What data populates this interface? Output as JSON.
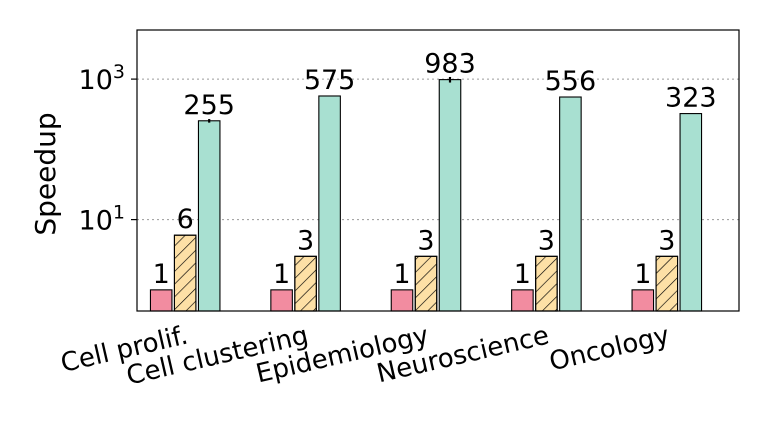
{
  "chart_data": {
    "type": "bar",
    "ylabel": "Speedup",
    "yscale": "log",
    "ylim": [
      0.5,
      5000
    ],
    "grid": "y-major-dotted",
    "yticks": [
      {
        "value": 10,
        "base": "10",
        "exp": "1"
      },
      {
        "value": 1000,
        "base": "10",
        "exp": "3"
      }
    ],
    "categories": [
      "Cell prolif.",
      "Cell clustering",
      "Epidemiology",
      "Neuroscience",
      "Oncology"
    ],
    "series": [
      {
        "color": "#f28ca0",
        "hatch": "",
        "values": [
          1,
          1,
          1,
          1,
          1
        ],
        "labels": [
          "1",
          "1",
          "1",
          "1",
          "1"
        ]
      },
      {
        "color": "#fde0a6",
        "hatch": "diagonal",
        "values": [
          6,
          3,
          3,
          3,
          3
        ],
        "labels": [
          "6",
          "3",
          "3",
          "3",
          "3"
        ]
      },
      {
        "color": "#a8e0d1",
        "hatch": "",
        "values": [
          255,
          575,
          983,
          556,
          323
        ],
        "labels": [
          "255",
          "575",
          "983",
          "556",
          "323"
        ],
        "error": [
          15,
          0,
          90,
          0,
          0
        ]
      }
    ]
  }
}
